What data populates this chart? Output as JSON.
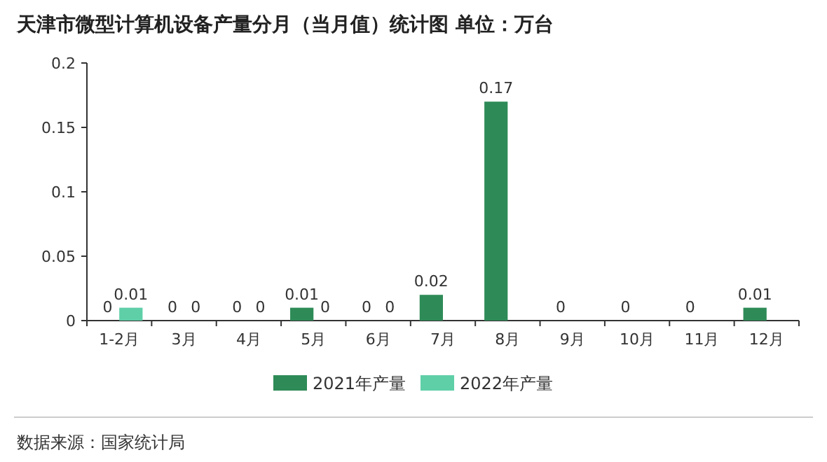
{
  "chart_data": {
    "type": "bar",
    "title": "天津市微型计算机设备产量分月（当月值）统计图 单位：万台",
    "categories": [
      "1-2月",
      "3月",
      "4月",
      "5月",
      "6月",
      "7月",
      "8月",
      "9月",
      "10月",
      "11月",
      "12月"
    ],
    "series": [
      {
        "name": "2021年产量",
        "color": "#2e8b57",
        "values": [
          0,
          0,
          0,
          0.01,
          0,
          0.02,
          0.17,
          0,
          0,
          0,
          0.01
        ]
      },
      {
        "name": "2022年产量",
        "color": "#5fcfa8",
        "values": [
          0.01,
          0,
          0,
          0,
          0,
          null,
          null,
          null,
          null,
          null,
          null
        ]
      }
    ],
    "ylim": [
      0,
      0.2
    ],
    "yticks": [
      0,
      0.05,
      0.1,
      0.15,
      0.2
    ],
    "data_labels": true,
    "legend": "bottom",
    "annotations": [
      "数据来源：国家统计局"
    ]
  }
}
